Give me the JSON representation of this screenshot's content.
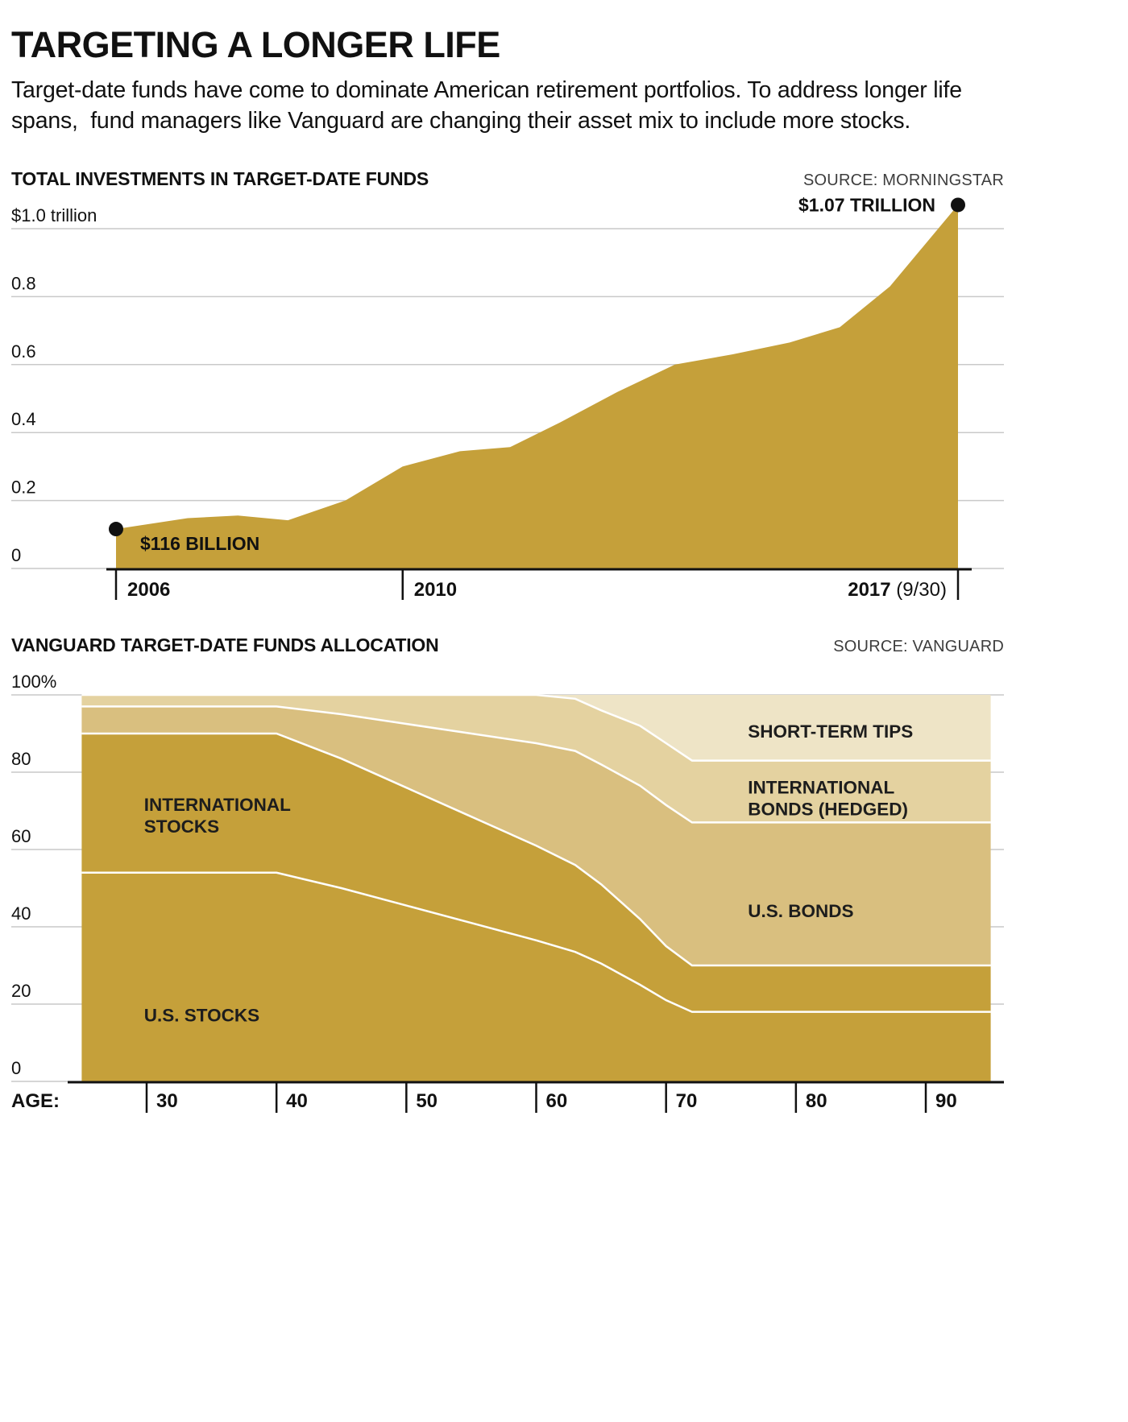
{
  "header": {
    "title": "TARGETING A LONGER LIFE",
    "subtitle": "Target-date funds have come to dominate American retirement portfolios. To address longer life spans,  fund managers like Vanguard are changing their asset mix to include more stocks."
  },
  "colors": {
    "gold": "#c5a03a",
    "us_bonds": "#d9bf7f",
    "intl_bonds": "#e4d2a0",
    "tips": "#eee4c6",
    "grid": "#c9c9c9",
    "axis": "#111111",
    "source_text": "#3d3d3d"
  },
  "chart_data": [
    {
      "type": "area",
      "heading": "TOTAL INVESTMENTS IN TARGET-DATE FUNDS",
      "source": "SOURCE: MORNINGSTAR",
      "unit": "trillions of dollars",
      "ylim": [
        0,
        1.07
      ],
      "x": [
        2006,
        2007,
        2007.7,
        2008.4,
        2009.2,
        2010,
        2010.8,
        2011.5,
        2012.2,
        2013,
        2013.8,
        2014.6,
        2015.4,
        2016.1,
        2016.8,
        2017.75
      ],
      "values": [
        0.116,
        0.148,
        0.156,
        0.142,
        0.2,
        0.3,
        0.345,
        0.357,
        0.43,
        0.52,
        0.6,
        0.63,
        0.665,
        0.71,
        0.83,
        1.07
      ],
      "yticks": [
        {
          "value": 1.0,
          "label": "$1.0 trillion"
        },
        {
          "value": 0.8,
          "label": "0.8"
        },
        {
          "value": 0.6,
          "label": "0.6"
        },
        {
          "value": 0.4,
          "label": "0.4"
        },
        {
          "value": 0.2,
          "label": "0.2"
        },
        {
          "value": 0,
          "label": "0"
        }
      ],
      "xticks": [
        {
          "value": 2006,
          "bold": "2006",
          "normal": "",
          "align": "start"
        },
        {
          "value": 2010,
          "bold": "2010",
          "normal": "",
          "align": "start"
        },
        {
          "value": 2017.75,
          "bold": "2017",
          "normal": " (9/30)",
          "align": "end"
        }
      ],
      "annotations": [
        {
          "x": 2006,
          "y": 0.116,
          "label": "$116 BILLION",
          "placement": "right-below"
        },
        {
          "x": 2017.75,
          "y": 1.07,
          "label": "$1.07 TRILLION",
          "placement": "left"
        }
      ]
    },
    {
      "type": "area-stacked",
      "heading": "VANGUARD TARGET-DATE FUNDS ALLOCATION",
      "source": "SOURCE: VANGUARD",
      "x_label": "AGE:",
      "ylim": [
        0,
        100
      ],
      "ages": [
        25,
        40,
        45,
        50,
        55,
        60,
        63,
        65,
        68,
        70,
        72,
        95
      ],
      "series": [
        {
          "name": "U.S. STOCKS",
          "color_key": "gold",
          "values": [
            54,
            54,
            50,
            45.5,
            41,
            36.5,
            33.5,
            30.5,
            25,
            21,
            18,
            18
          ]
        },
        {
          "name": "INTERNATIONAL STOCKS",
          "color_key": "gold",
          "values": [
            36,
            36,
            33.5,
            30.5,
            27.5,
            24.5,
            22.5,
            20.5,
            17,
            14,
            12,
            12
          ]
        },
        {
          "name": "U.S. BONDS",
          "color_key": "us_bonds",
          "values": [
            7,
            7,
            11.5,
            16.5,
            21.5,
            26.5,
            29.5,
            31,
            34.5,
            36.5,
            37,
            37
          ]
        },
        {
          "name": "INTERNATIONAL BONDS (HEDGED)",
          "color_key": "intl_bonds",
          "values": [
            3,
            3,
            5,
            7.5,
            10,
            12.5,
            13.5,
            14,
            15.5,
            16,
            16,
            16
          ]
        },
        {
          "name": "SHORT-TERM TIPS",
          "color_key": "tips",
          "values": [
            0,
            0,
            0,
            0,
            0,
            0,
            1,
            4,
            8,
            12.5,
            17,
            17
          ]
        }
      ],
      "yticks": [
        {
          "value": 100,
          "label": "100%"
        },
        {
          "value": 80,
          "label": "80"
        },
        {
          "value": 60,
          "label": "60"
        },
        {
          "value": 40,
          "label": "40"
        },
        {
          "value": 20,
          "label": "20"
        },
        {
          "value": 0,
          "label": "0"
        }
      ],
      "xticks": [
        30,
        40,
        50,
        60,
        70,
        80,
        90
      ],
      "labels": [
        {
          "lines": [
            "INTERNATIONAL",
            "STOCKS"
          ],
          "age": 29.8,
          "pct": 70
        },
        {
          "lines": [
            "U.S. STOCKS"
          ],
          "age": 29.8,
          "pct": 15.5
        },
        {
          "lines": [
            "SHORT-TERM TIPS"
          ],
          "age": 76.3,
          "pct": 89
        },
        {
          "lines": [
            "INTERNATIONAL",
            "BONDS (HEDGED)"
          ],
          "age": 76.3,
          "pct": 74.5
        },
        {
          "lines": [
            "U.S. BONDS"
          ],
          "age": 76.3,
          "pct": 42.5
        }
      ]
    }
  ]
}
